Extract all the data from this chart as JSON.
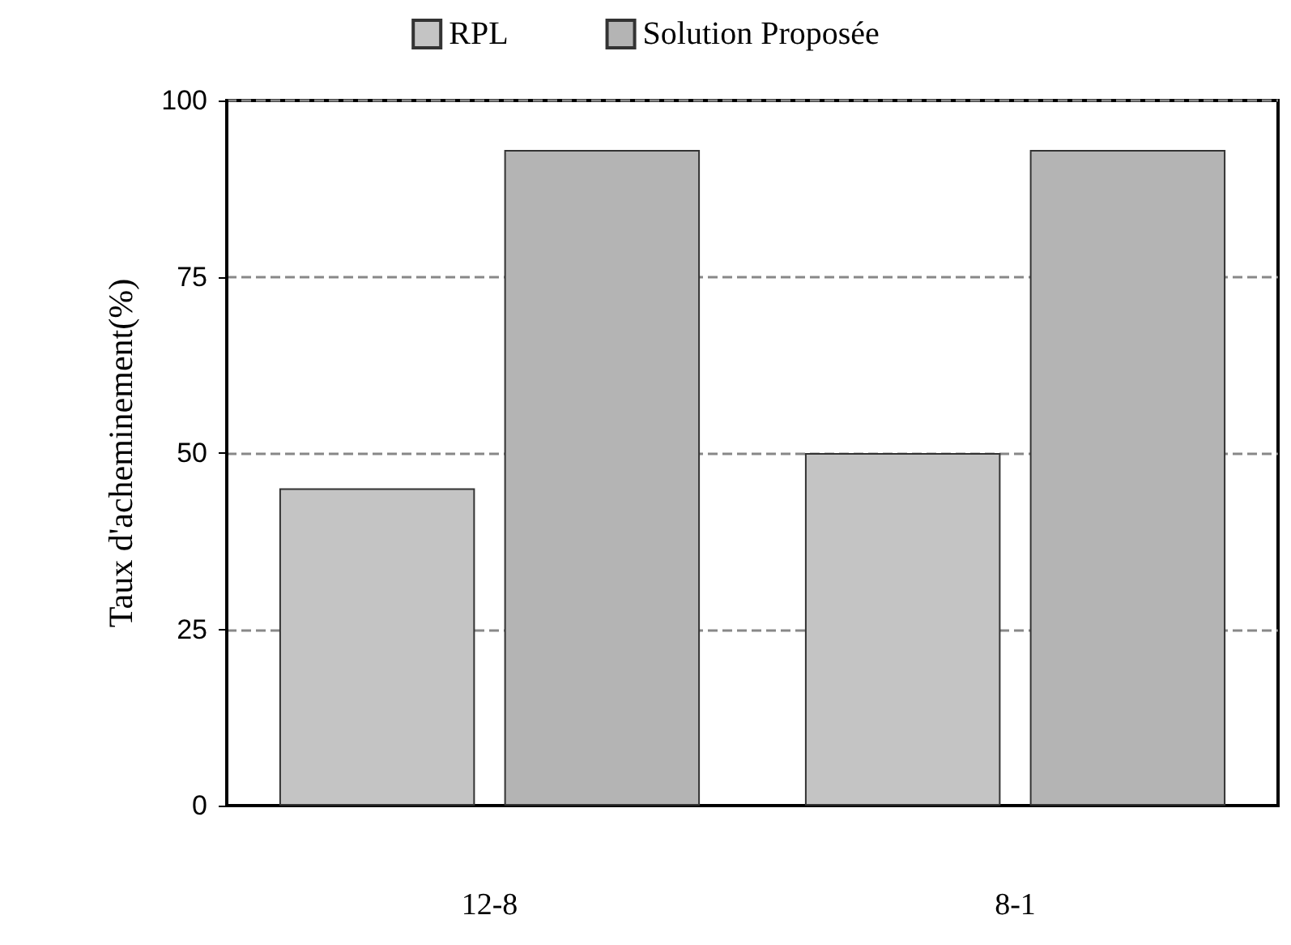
{
  "chart_data": {
    "type": "bar",
    "ylabel": "Taux d'acheminement(%)",
    "categories": [
      "12-8",
      "8-1"
    ],
    "series": [
      {
        "name": "RPL",
        "color": "#c4c4c4",
        "values": [
          45,
          50
        ]
      },
      {
        "name": "Solution Proposée",
        "color": "#b4b4b4",
        "values": [
          93,
          93
        ]
      }
    ],
    "ylim": [
      0,
      100
    ],
    "yticks": [
      0,
      25,
      50,
      75,
      100
    ],
    "grid": "y",
    "legend": "top"
  }
}
